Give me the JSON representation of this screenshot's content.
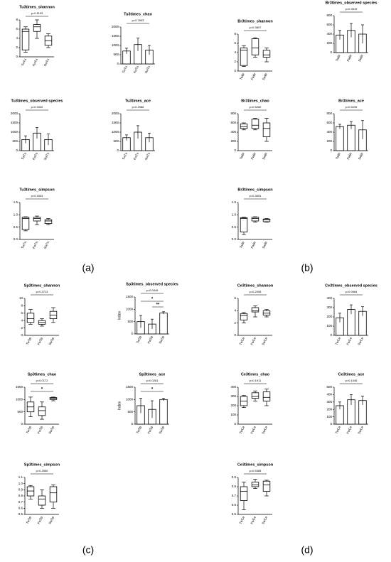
{
  "panel_labels": [
    "(a)",
    "(b)",
    "(c)",
    "(d)"
  ],
  "chart_data": [
    {
      "type": "box",
      "title": "Tu3times_shannon",
      "pvalue": "p=0.1103",
      "categories": [
        "TwTu",
        "FwTu",
        "SwTu"
      ],
      "ylim": [
        0,
        8
      ],
      "yticks": [
        0,
        2,
        4,
        6,
        8
      ],
      "values": [
        [
          1,
          1.5,
          5.5,
          6,
          6.5
        ],
        [
          4,
          5.5,
          6.5,
          7,
          8
        ],
        [
          2,
          2.5,
          3.5,
          4.5,
          5
        ]
      ]
    },
    {
      "type": "bar",
      "title": "Tu3times_chao",
      "pvalue": "p=0.7603",
      "categories": [
        "TwTu",
        "FwTu",
        "SwTu"
      ],
      "ylim": [
        0,
        2000
      ],
      "yticks": [
        0,
        500,
        1000,
        1500,
        2000
      ],
      "values": [
        700,
        1050,
        750
      ],
      "errors": [
        150,
        350,
        250
      ]
    },
    {
      "type": "bar",
      "title": "Tu3times_observed species",
      "pvalue": "p=0.3040",
      "categories": [
        "TwTu",
        "FwTu",
        "SwTu"
      ],
      "ylim": [
        0,
        2000
      ],
      "yticks": [
        0,
        500,
        1000,
        1500,
        2000
      ],
      "values": [
        600,
        950,
        600
      ],
      "errors": [
        200,
        300,
        300
      ]
    },
    {
      "type": "bar",
      "title": "Tu3times_ace",
      "pvalue": "p=0.2986",
      "categories": [
        "TwTu",
        "FwTu",
        "SwTu"
      ],
      "ylim": [
        0,
        2000
      ],
      "yticks": [
        0,
        500,
        1000,
        1500,
        2000
      ],
      "values": [
        700,
        1000,
        700
      ],
      "errors": [
        150,
        350,
        250
      ]
    },
    {
      "type": "box",
      "title": "Tu3times_simpson",
      "pvalue": "p=0.1503",
      "categories": [
        "TwTu",
        "FwTu",
        "SwTu"
      ],
      "ylim": [
        0,
        1.5
      ],
      "yticks": [
        {
          "value": 0,
          "label": "0.0"
        },
        0.5,
        {
          "value": 1,
          "label": "1.0"
        },
        1.5
      ],
      "values": [
        [
          0.35,
          0.4,
          0.85,
          0.9,
          0.92
        ],
        [
          0.6,
          0.75,
          0.85,
          0.9,
          0.95
        ],
        [
          0.6,
          0.65,
          0.75,
          0.8,
          0.85
        ]
      ]
    },
    {
      "type": "box",
      "title": "Br3times_shannon",
      "pvalue": "p=0.3807",
      "categories": [
        "TwBr",
        "FwBr",
        "SwBr"
      ],
      "ylim": [
        0,
        8
      ],
      "yticks": [
        0,
        2,
        4,
        6,
        8
      ],
      "values": [
        [
          1,
          1.2,
          4.5,
          5,
          5.5
        ],
        [
          3,
          3.5,
          5,
          7,
          7.2
        ],
        [
          2,
          3,
          3.5,
          4.5,
          5
        ]
      ]
    },
    {
      "type": "bar",
      "title": "Br3times_observed species",
      "pvalue": "p=0.3519",
      "categories": [
        "TwBr",
        "FwBr",
        "SwBr"
      ],
      "ylim": [
        0,
        800
      ],
      "yticks": [
        0,
        200,
        400,
        600,
        800
      ],
      "values": [
        380,
        480,
        400
      ],
      "errors": [
        100,
        150,
        200
      ]
    },
    {
      "type": "box",
      "title": "Br3times_chao",
      "pvalue": "p=0.5282",
      "categories": [
        "TwBr",
        "FwBr",
        "SwBr"
      ],
      "ylim": [
        0,
        800
      ],
      "yticks": [
        0,
        200,
        400,
        600,
        800
      ],
      "values": [
        [
          450,
          480,
          520,
          580,
          600
        ],
        [
          450,
          480,
          550,
          680,
          700
        ],
        [
          200,
          300,
          480,
          600,
          700
        ]
      ]
    },
    {
      "type": "bar",
      "title": "Br3times_ace",
      "pvalue": "p=0.5239",
      "categories": [
        "TwBr",
        "FwBr",
        "SwBr"
      ],
      "ylim": [
        0,
        800
      ],
      "yticks": [
        0,
        200,
        400,
        600,
        800
      ],
      "values": [
        520,
        550,
        450
      ],
      "errors": [
        50,
        80,
        200
      ]
    },
    {
      "type": "box",
      "title": "Br3times_simpson",
      "pvalue": "p=0.3651",
      "categories": [
        "TwBr",
        "FwBr",
        "SwBr"
      ],
      "ylim": [
        0,
        1.5
      ],
      "yticks": [
        {
          "value": 0,
          "label": "0.0"
        },
        0.5,
        {
          "value": 1,
          "label": "1.0"
        },
        1.5
      ],
      "values": [
        [
          0.2,
          0.3,
          0.85,
          0.88,
          0.9
        ],
        [
          0.7,
          0.75,
          0.85,
          0.9,
          0.92
        ],
        [
          0.7,
          0.72,
          0.8,
          0.83,
          0.85
        ]
      ]
    },
    {
      "type": "box",
      "title": "Sp3times_shannon",
      "pvalue": "p=0.3713",
      "categories": [
        "TwSp",
        "FwSp",
        "SwSp"
      ],
      "ylim": [
        0,
        10
      ],
      "yticks": [
        0,
        2,
        4,
        6,
        8,
        10
      ],
      "values": [
        [
          3,
          3.5,
          4.5,
          6,
          7
        ],
        [
          2.5,
          3,
          3.5,
          4,
          4.5
        ],
        [
          3.5,
          4.5,
          5.5,
          6.5,
          7.5
        ]
      ]
    },
    {
      "type": "bar",
      "title": "Sp3times_observed species",
      "pvalue": "p=0.0049",
      "y_label": "Index",
      "significance": [
        "*",
        "**"
      ],
      "categories": [
        "TwSp",
        "FwSp",
        "SwSp"
      ],
      "ylim": [
        0,
        1500
      ],
      "yticks": [
        0,
        500,
        1000,
        1500
      ],
      "values": [
        500,
        400,
        850
      ],
      "errors": [
        250,
        200,
        50
      ]
    },
    {
      "type": "box",
      "title": "Sp3times_chao",
      "pvalue": "p=0.0172",
      "significance": [
        "*"
      ],
      "categories": [
        "TwSp",
        "FwSp",
        "SwSp"
      ],
      "ylim": [
        0,
        1500
      ],
      "yticks": [
        0,
        500,
        1000,
        1500
      ],
      "values": [
        [
          300,
          500,
          700,
          900,
          1100
        ],
        [
          200,
          350,
          550,
          700,
          900
        ],
        [
          950,
          1000,
          1050,
          1080,
          1100
        ]
      ]
    },
    {
      "type": "bar",
      "title": "Sp3times_ace",
      "pvalue": "p=0.0281",
      "y_label": "Index",
      "significance": [
        "*"
      ],
      "categories": [
        "TwSp",
        "FwSp",
        "SwSp"
      ],
      "ylim": [
        0,
        1500
      ],
      "yticks": [
        0,
        500,
        1000,
        1500
      ],
      "values": [
        750,
        600,
        1000
      ],
      "errors": [
        300,
        350,
        50
      ]
    },
    {
      "type": "box",
      "title": "Sp3times_simpson",
      "pvalue": "p=0.2550",
      "categories": [
        "TwSp",
        "FwSp",
        "SwSp"
      ],
      "ylim": [
        0.5,
        1.1
      ],
      "yticks": [
        0.5,
        0.6,
        0.7,
        0.8,
        0.9,
        {
          "value": 1,
          "label": "1.0"
        },
        1.1
      ],
      "values": [
        [
          0.75,
          0.8,
          0.88,
          0.95,
          0.97
        ],
        [
          0.6,
          0.65,
          0.75,
          0.8,
          0.9
        ],
        [
          0.6,
          0.7,
          0.85,
          0.95,
          0.98
        ]
      ]
    },
    {
      "type": "box",
      "title": "Ce3times_shannon",
      "pvalue": "p=0.2008",
      "categories": [
        "TwCe",
        "FwCe",
        "SwCe"
      ],
      "ylim": [
        0,
        6
      ],
      "yticks": [
        0,
        2,
        4,
        6
      ],
      "values": [
        [
          2,
          2.5,
          3.2,
          3.5,
          3.7
        ],
        [
          3,
          3.8,
          4,
          4.5,
          4.8
        ],
        [
          3,
          3.3,
          3.6,
          4,
          4.2
        ]
      ]
    },
    {
      "type": "bar",
      "title": "Ce3times_observed species",
      "pvalue": "p=0.0684",
      "categories": [
        "TwCe",
        "FwCe",
        "SwCe"
      ],
      "ylim": [
        0,
        400
      ],
      "yticks": [
        0,
        100,
        200,
        300,
        400
      ],
      "values": [
        190,
        280,
        260
      ],
      "errors": [
        50,
        50,
        50
      ]
    },
    {
      "type": "box",
      "title": "Ce3times_chao",
      "pvalue": "p=0.1911",
      "categories": [
        "TwCe",
        "FwCe",
        "SwCe"
      ],
      "ylim": [
        0,
        400
      ],
      "yticks": [
        0,
        100,
        200,
        300,
        400
      ],
      "values": [
        [
          180,
          200,
          250,
          300,
          310
        ],
        [
          250,
          280,
          300,
          340,
          360
        ],
        [
          200,
          250,
          290,
          350,
          380
        ]
      ]
    },
    {
      "type": "bar",
      "title": "Ce3times_ace",
      "pvalue": "p=0.1045",
      "categories": [
        "TwCe",
        "FwCe",
        "SwCe"
      ],
      "ylim": [
        0,
        500
      ],
      "yticks": [
        0,
        100,
        200,
        300,
        400,
        500
      ],
      "values": [
        250,
        330,
        320
      ],
      "errors": [
        50,
        70,
        60
      ]
    },
    {
      "type": "box",
      "title": "Ce3times_simpson",
      "pvalue": "p=0.5385",
      "categories": [
        "TwCe",
        "FwCe",
        "SwCe"
      ],
      "ylim": [
        0.5,
        0.9
      ],
      "yticks": [
        0.5,
        0.6,
        0.7,
        0.8,
        0.9
      ],
      "values": [
        [
          0.55,
          0.65,
          0.75,
          0.8,
          0.85
        ],
        [
          0.78,
          0.8,
          0.82,
          0.85,
          0.88
        ],
        [
          0.7,
          0.75,
          0.82,
          0.86,
          0.87
        ]
      ]
    }
  ]
}
